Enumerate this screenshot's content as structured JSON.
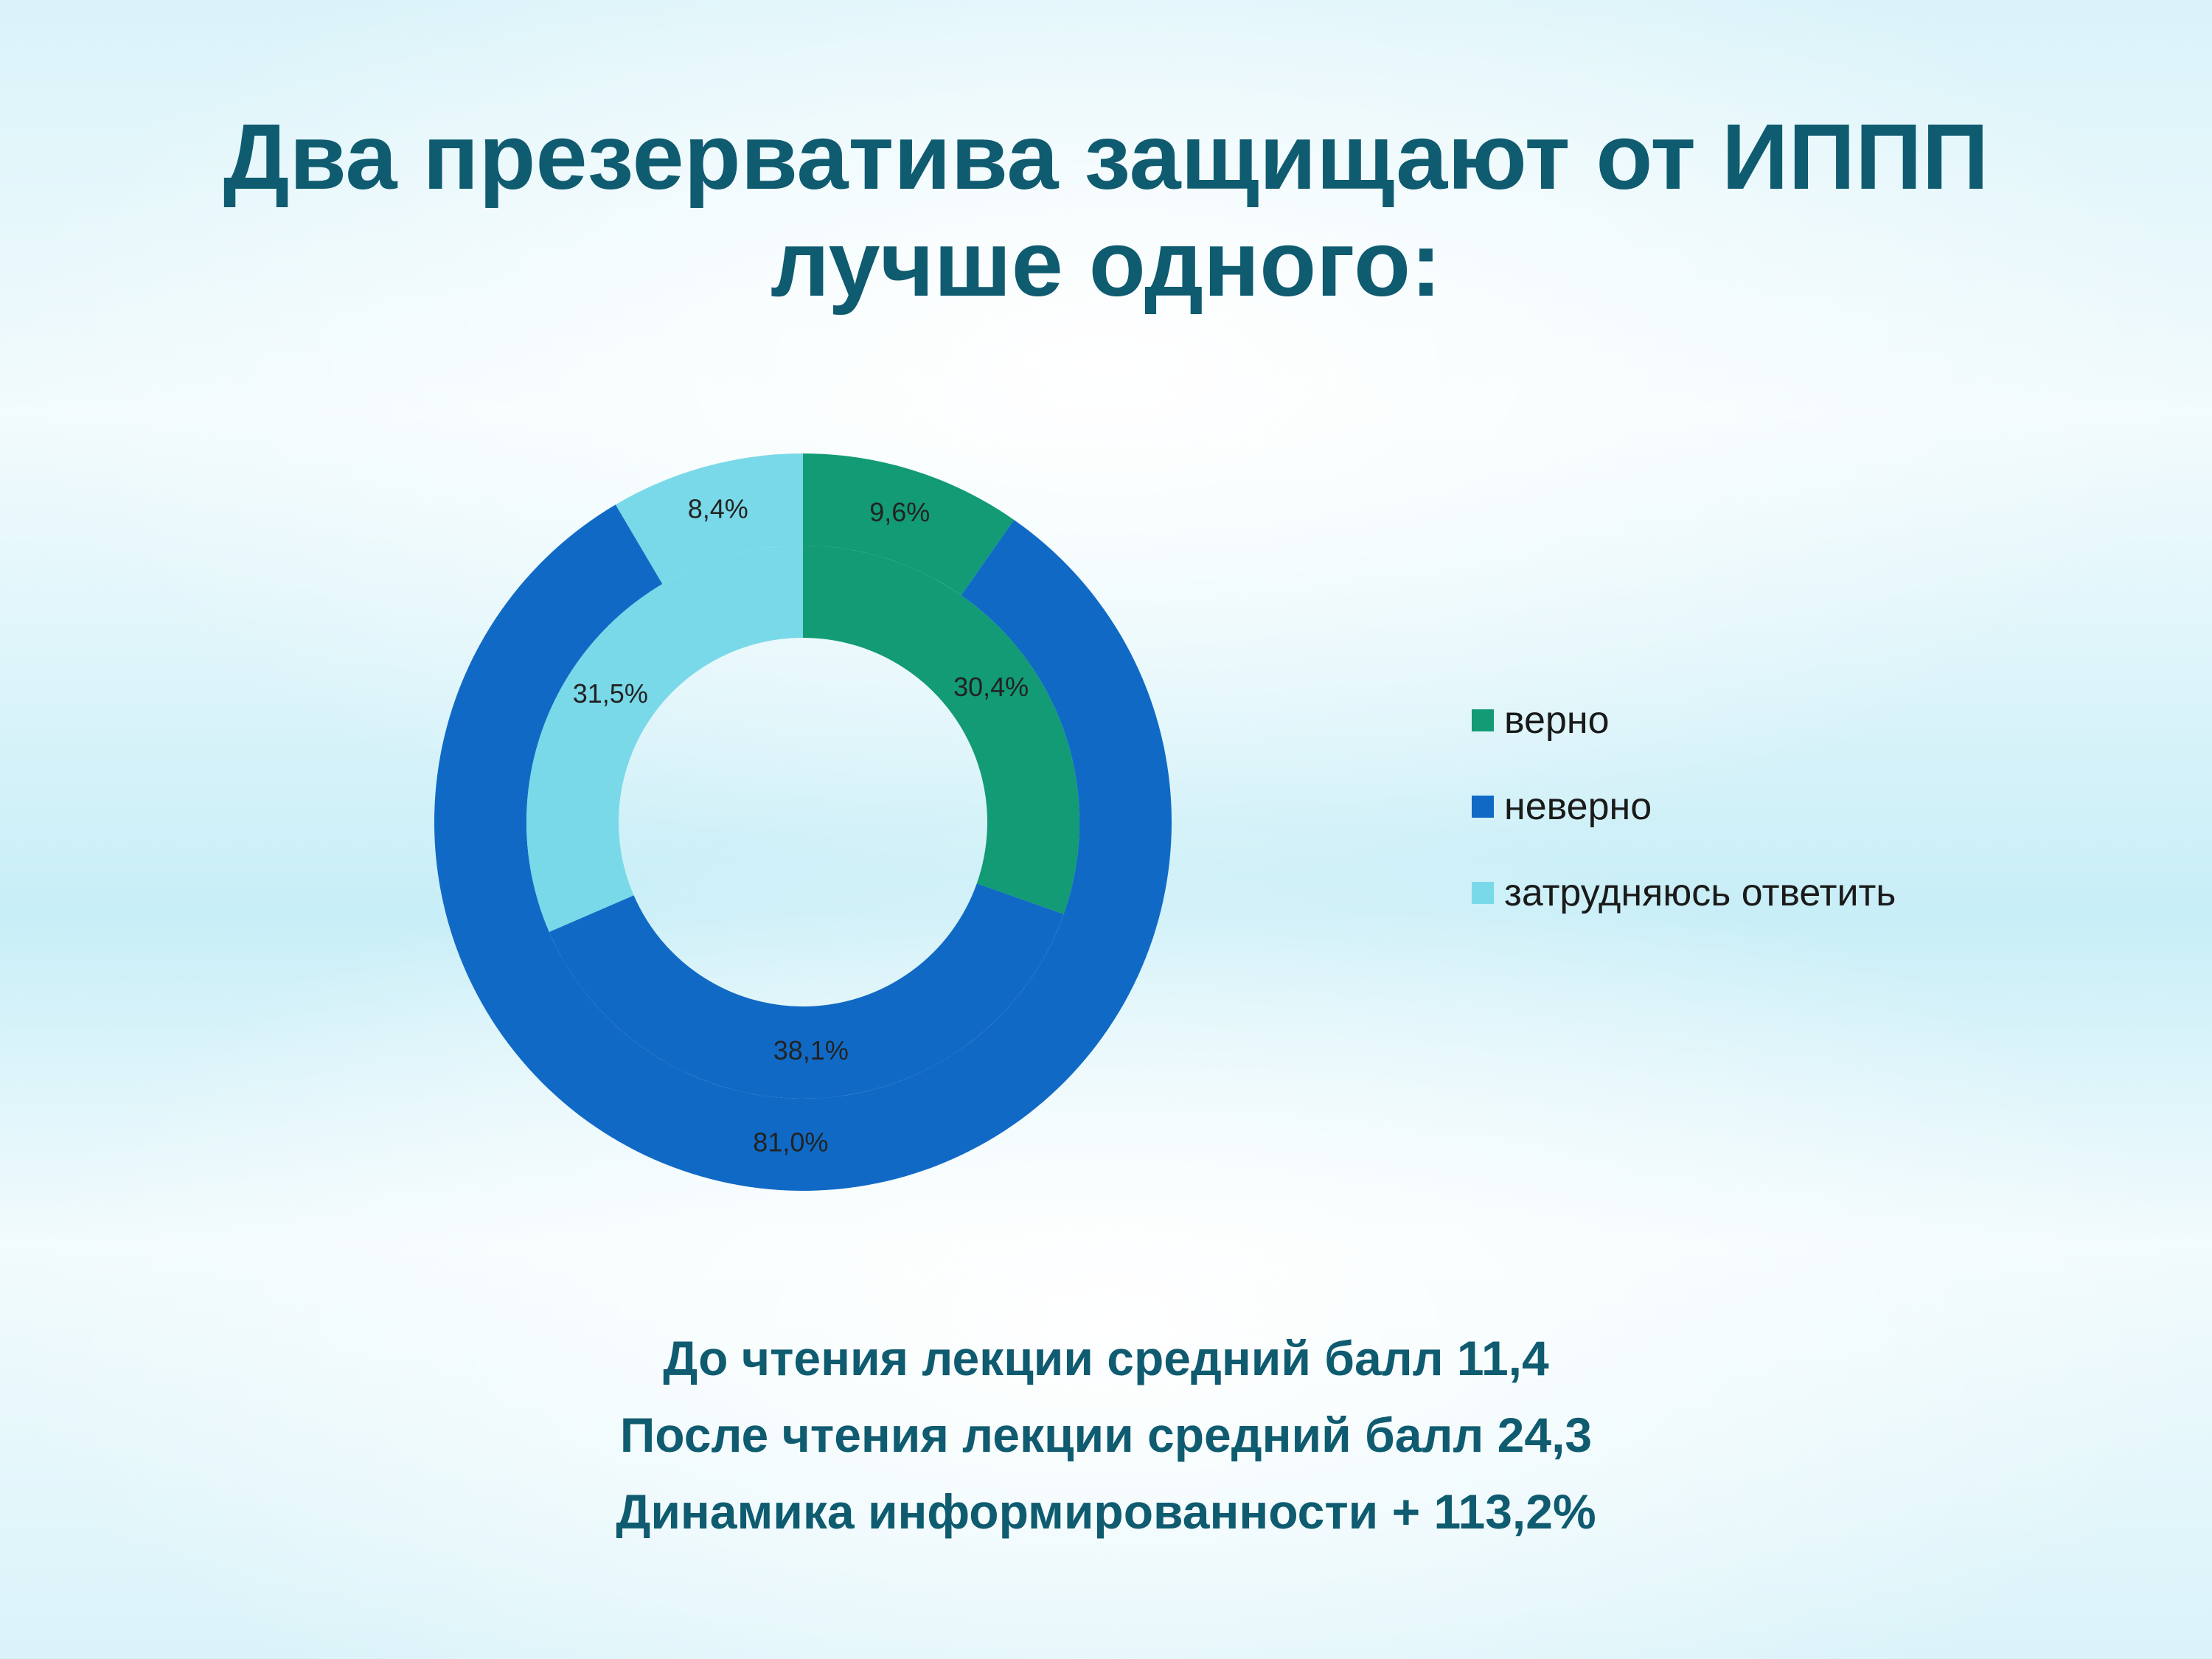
{
  "title_line1": "Два презерватива защищают от ИППП",
  "title_line2": "лучше одного:",
  "chart_data": {
    "type": "pie",
    "subtype": "doughnut",
    "categories": [
      "верно",
      "неверно",
      "затрудняюсь ответить"
    ],
    "colors": [
      "#129b74",
      "#106ac5",
      "#79d9e8"
    ],
    "series": [
      {
        "ring": "outer",
        "values": [
          9.6,
          81.0,
          8.4
        ],
        "labels": [
          "9,6%",
          "81,0%",
          "8,4%"
        ]
      },
      {
        "ring": "inner",
        "values": [
          30.4,
          38.1,
          31.5
        ],
        "labels": [
          "30,4%",
          "38,1%",
          "31,5%"
        ]
      }
    ],
    "legend_position": "right"
  },
  "stats": {
    "line1": "До чтения лекции средний балл 11,4",
    "line2": "После чтения лекции средний балл 24,3",
    "line3": "Динамика информированности + 113,2%"
  }
}
